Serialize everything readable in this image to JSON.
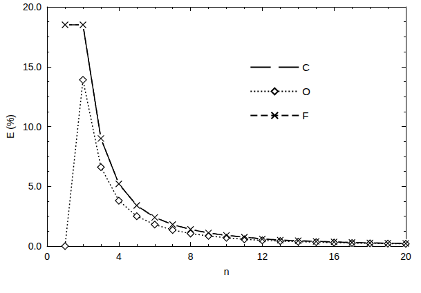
{
  "chart_data": {
    "type": "line",
    "x_label": "n",
    "y_label": "E (%)",
    "x": [
      1,
      2,
      3,
      4,
      5,
      6,
      7,
      8,
      9,
      10,
      11,
      12,
      13,
      14,
      15,
      16,
      17,
      18,
      19,
      20
    ],
    "series": [
      {
        "name": "C",
        "color": "#000000",
        "marker": "circle",
        "line_style": "solid",
        "values": [
          18.5,
          18.5,
          9.0,
          5.2,
          3.4,
          2.4,
          1.8,
          1.4,
          1.1,
          0.9,
          0.75,
          0.6,
          0.5,
          0.45,
          0.4,
          0.35,
          0.3,
          0.27,
          0.24,
          0.22
        ]
      },
      {
        "name": "O",
        "color": "#000000",
        "marker": "diamond",
        "line_style": "dotted",
        "values": [
          0,
          13.9,
          6.6,
          3.8,
          2.5,
          1.8,
          1.35,
          1.05,
          0.85,
          0.7,
          0.57,
          0.48,
          0.42,
          0.37,
          0.33,
          0.29,
          0.26,
          0.23,
          0.21,
          0.19
        ]
      },
      {
        "name": "F",
        "color": "#000000",
        "marker": "x",
        "line_style": "dashed",
        "values": [
          18.5,
          18.5,
          9.0,
          5.2,
          3.4,
          2.4,
          1.8,
          1.4,
          1.1,
          0.9,
          0.75,
          0.6,
          0.5,
          0.45,
          0.4,
          0.35,
          0.3,
          0.27,
          0.24,
          0.22
        ]
      }
    ],
    "xlim": [
      0,
      20
    ],
    "xticks": [
      0,
      4,
      8,
      12,
      16,
      20
    ],
    "ylim": [
      0,
      20
    ],
    "yticks": [
      {
        "value": 0,
        "label": "0.0"
      },
      {
        "value": 5,
        "label": "5.0"
      },
      {
        "value": 10,
        "label": "10.0"
      },
      {
        "value": 15,
        "label": "15.0"
      },
      {
        "value": 20,
        "label": "20.0"
      }
    ],
    "grid": false,
    "legend": "upper right"
  }
}
